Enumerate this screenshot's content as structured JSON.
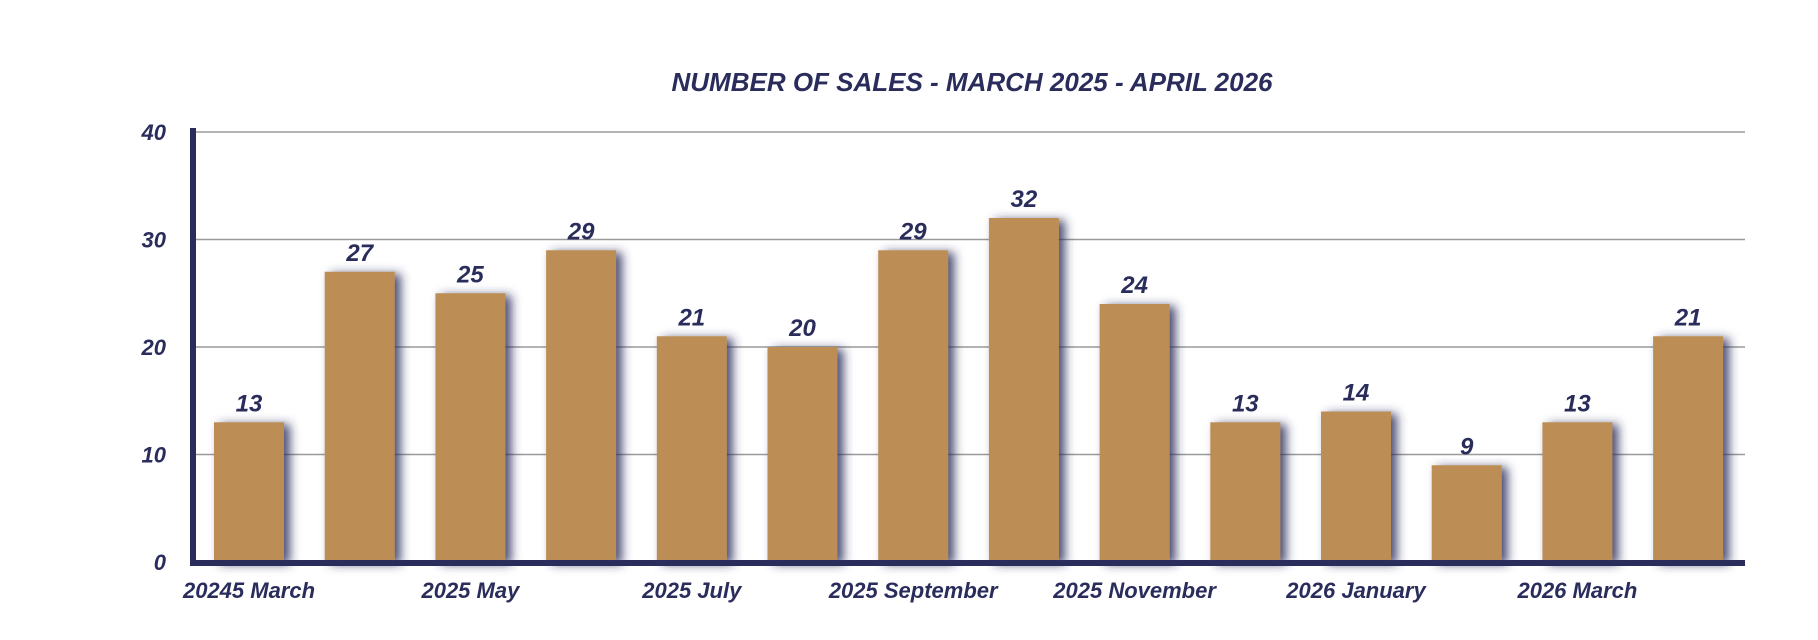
{
  "chart_data": {
    "type": "bar",
    "title": "NUMBER OF SALES - MARCH 2025 - APRIL 2026",
    "xlabel": "",
    "ylabel": "",
    "categories": [
      "20245 March",
      "",
      "2025 May",
      "",
      "2025 July",
      "",
      "2025 September",
      "",
      "2025 November",
      "",
      "2026 January",
      "",
      "2026 March",
      ""
    ],
    "values": [
      13,
      27,
      25,
      29,
      21,
      20,
      29,
      32,
      24,
      13,
      14,
      9,
      13,
      21
    ],
    "ylim": [
      0,
      40
    ],
    "yticks": [
      0,
      10,
      20,
      30,
      40
    ],
    "grid": true,
    "data_labels": true,
    "legend": "none",
    "colors": {
      "bar": "#bc8e57",
      "bar_shadow": "#2a2d5c",
      "text": "#2a2d5c",
      "axis": "#2a2d5c",
      "grid": "#9a9a9a"
    }
  }
}
